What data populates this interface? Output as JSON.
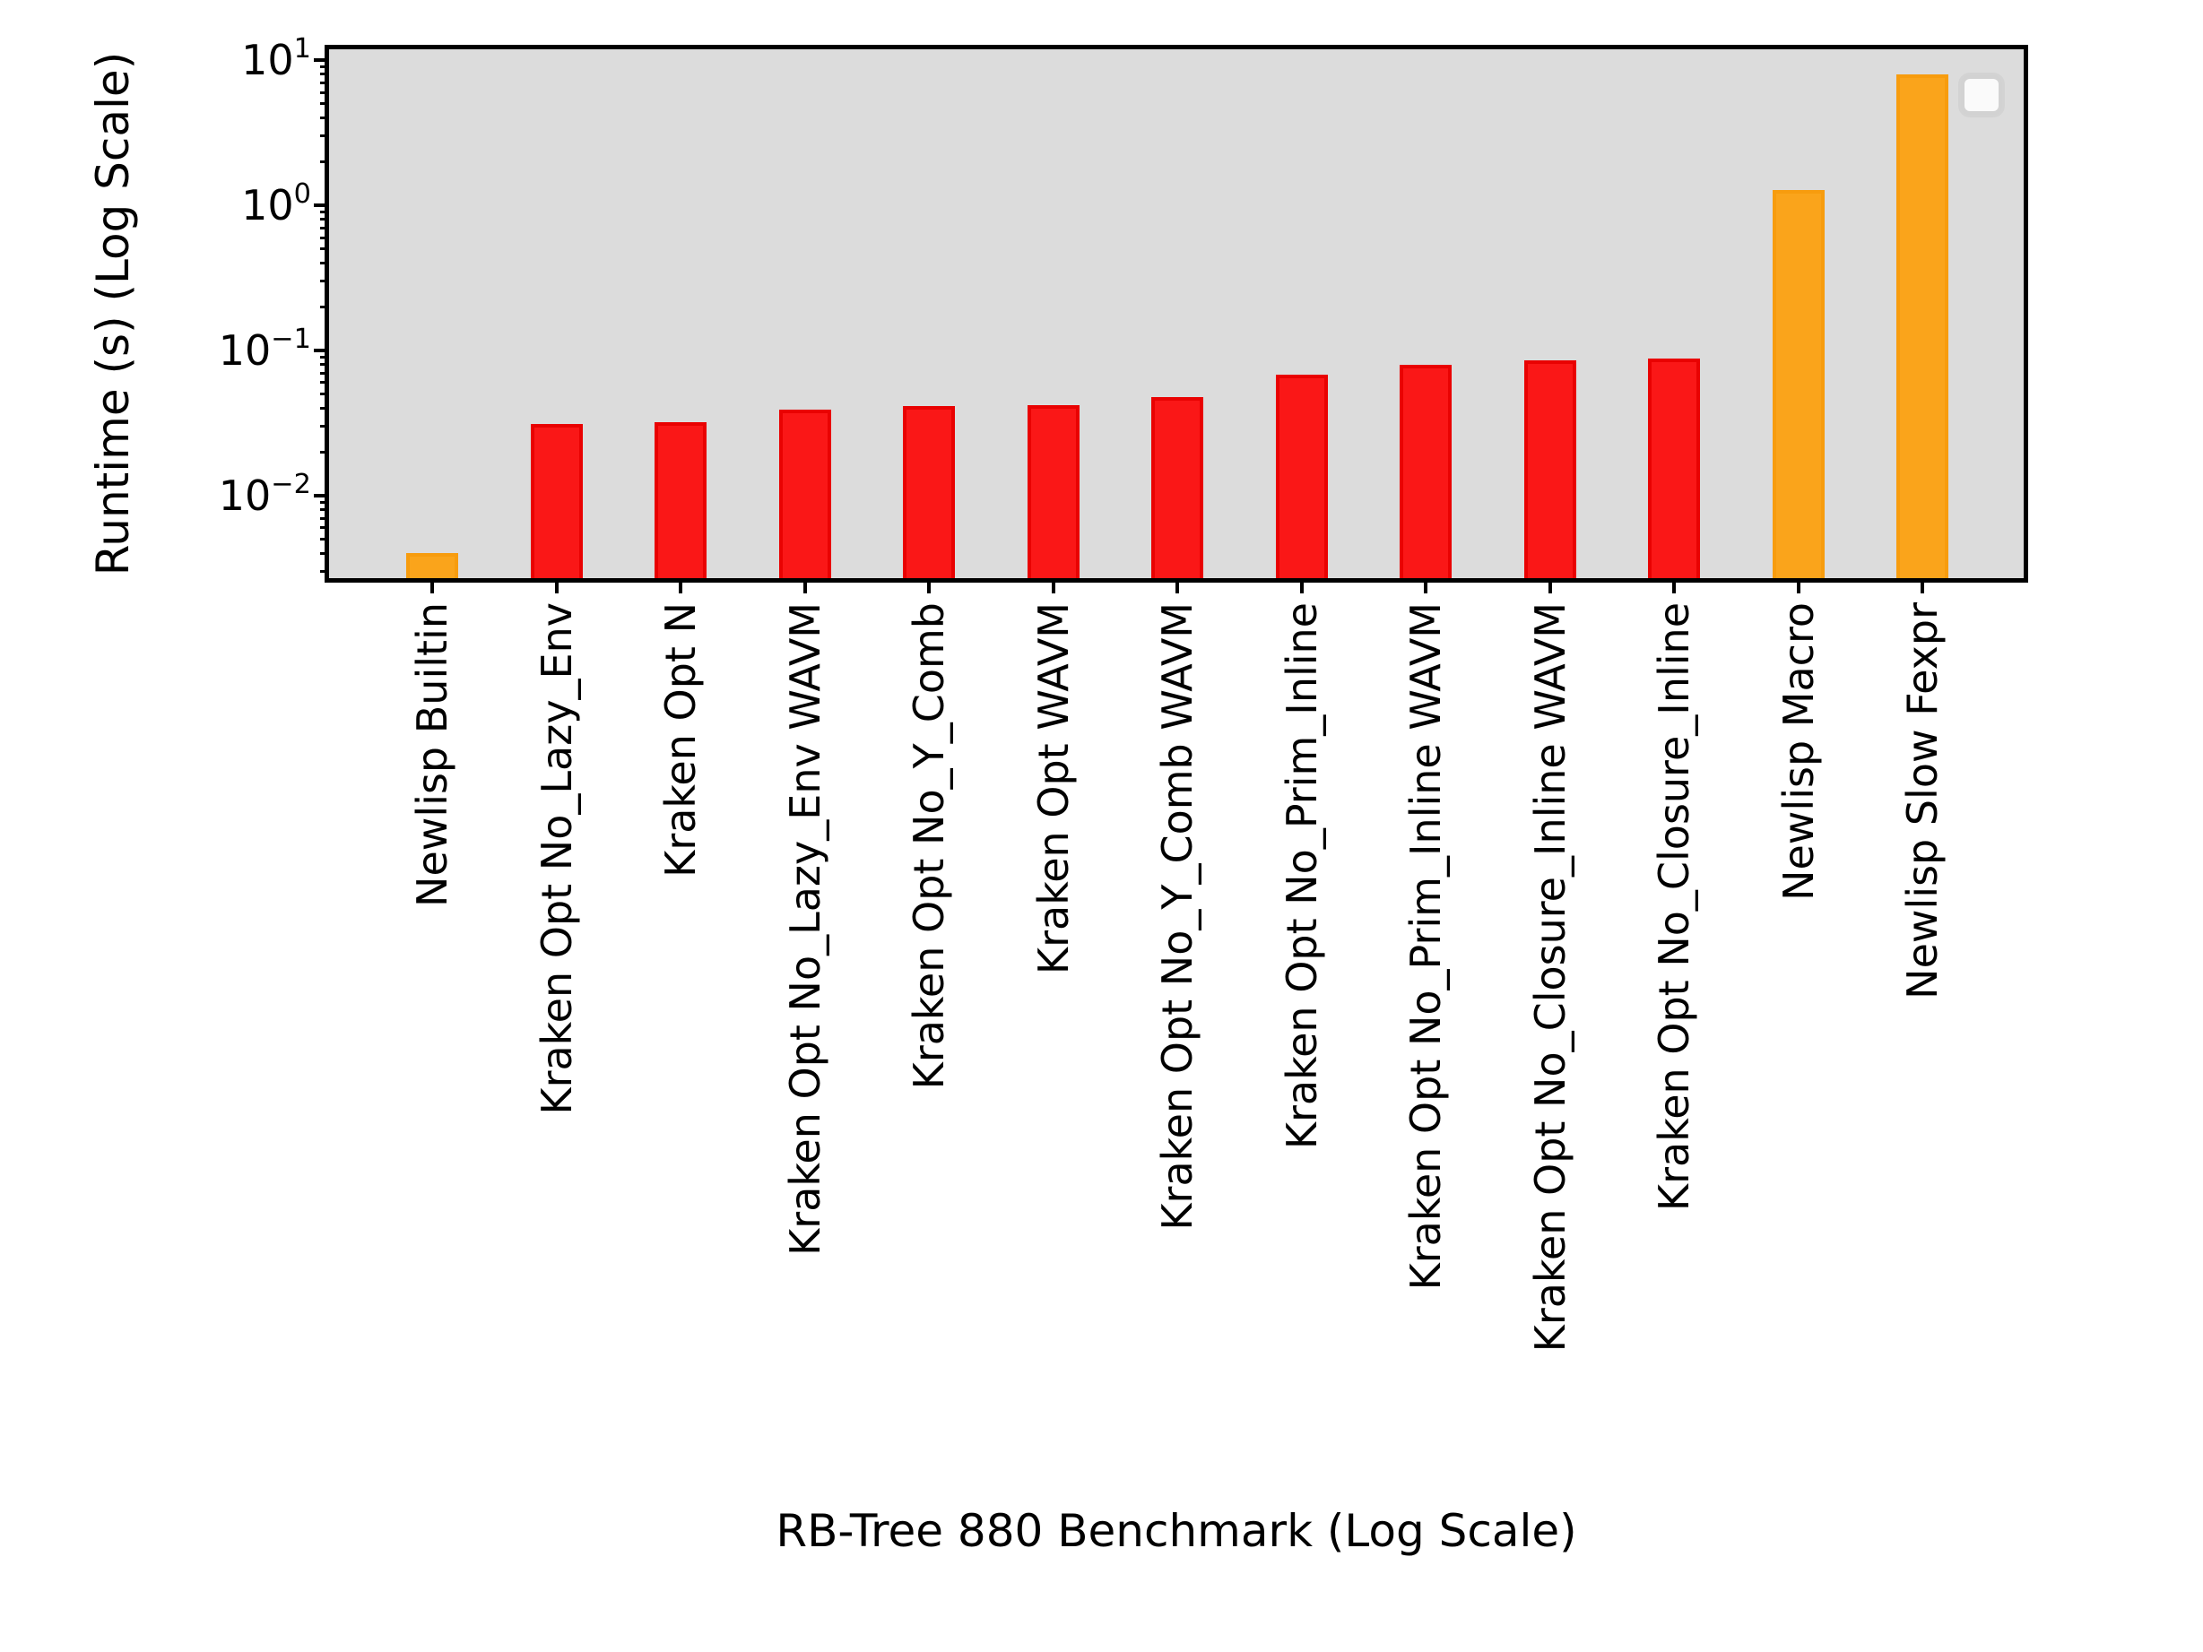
{
  "figure": {
    "background_color": "#ffffff",
    "plot_background_color": "#dcdcdc",
    "frame_color": "#000000"
  },
  "legend": {
    "visible": true,
    "entries": []
  },
  "chart_data": {
    "type": "bar",
    "title": "",
    "xlabel": "RB-Tree 880 Benchmark (Log Scale)",
    "ylabel": "Runtime (s) (Log Scale)",
    "yscale": "log",
    "ylim": [
      0.0027,
      11.9
    ],
    "y_tick_exponents": [
      1,
      0,
      -1,
      -2
    ],
    "grid": false,
    "legend_position": "upper right",
    "categories": [
      "Newlisp Builtin",
      "Kraken Opt No_Lazy_Env",
      "Kraken Opt N",
      "Kraken Opt No_Lazy_Env WAVM",
      "Kraken Opt No_Y_Comb",
      "Kraken Opt WAVM",
      "Kraken Opt No_Y_Comb WAVM",
      "Kraken Opt No_Prim_Inline",
      "Kraken Opt No_Prim_Inline WAVM",
      "Kraken Opt No_Closure_Inline WAVM",
      "Kraken Opt No_Closure_Inline",
      "Newlisp Macro",
      "Newlisp Slow Fexpr"
    ],
    "values": [
      0.004,
      0.031,
      0.032,
      0.039,
      0.0415,
      0.042,
      0.048,
      0.068,
      0.08,
      0.086,
      0.088,
      1.27,
      8.0
    ],
    "groups": [
      "newlisp",
      "kraken",
      "kraken",
      "kraken",
      "kraken",
      "kraken",
      "kraken",
      "kraken",
      "kraken",
      "kraken",
      "kraken",
      "newlisp",
      "newlisp"
    ],
    "group_colors": {
      "newlisp": {
        "fill": "#faa41b",
        "edge": "#f79c0e"
      },
      "kraken": {
        "fill": "#fa1717",
        "edge": "#e90202"
      }
    }
  }
}
